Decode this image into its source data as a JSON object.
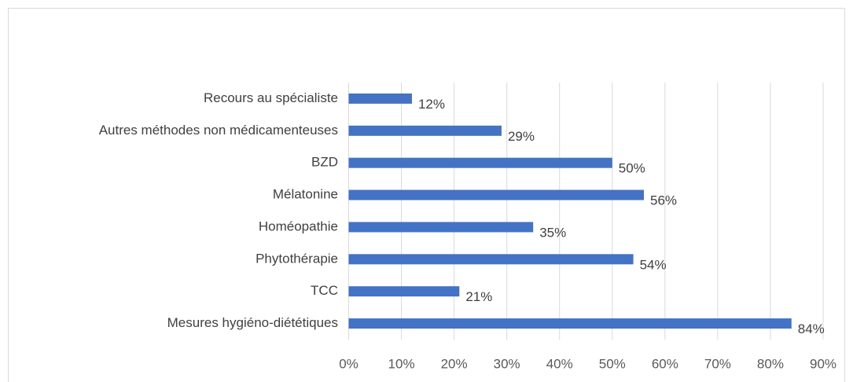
{
  "chart_data": {
    "type": "bar",
    "orientation": "horizontal",
    "categories": [
      "Recours au spécialiste",
      "Autres méthodes non médicamenteuses",
      "BZD",
      "Mélatonine",
      "Homéopathie",
      "Phytothérapie",
      "TCC",
      "Mesures hygiéno-diététiques"
    ],
    "values": [
      12,
      29,
      50,
      56,
      35,
      54,
      21,
      84
    ],
    "value_labels": [
      "12%",
      "29%",
      "50%",
      "56%",
      "35%",
      "54%",
      "21%",
      "84%"
    ],
    "color": "#4472c4",
    "xlim": [
      0,
      90
    ],
    "xticks": [
      {
        "value": 0,
        "label": "0%"
      },
      {
        "value": 10,
        "label": "10%"
      },
      {
        "value": 20,
        "label": "20%"
      },
      {
        "value": 30,
        "label": "30%"
      },
      {
        "value": 40,
        "label": "40%"
      },
      {
        "value": 50,
        "label": "50%"
      },
      {
        "value": 60,
        "label": "60%"
      },
      {
        "value": 70,
        "label": "70%"
      },
      {
        "value": 80,
        "label": "80%"
      },
      {
        "value": 90,
        "label": "90%"
      }
    ],
    "grid": true
  }
}
